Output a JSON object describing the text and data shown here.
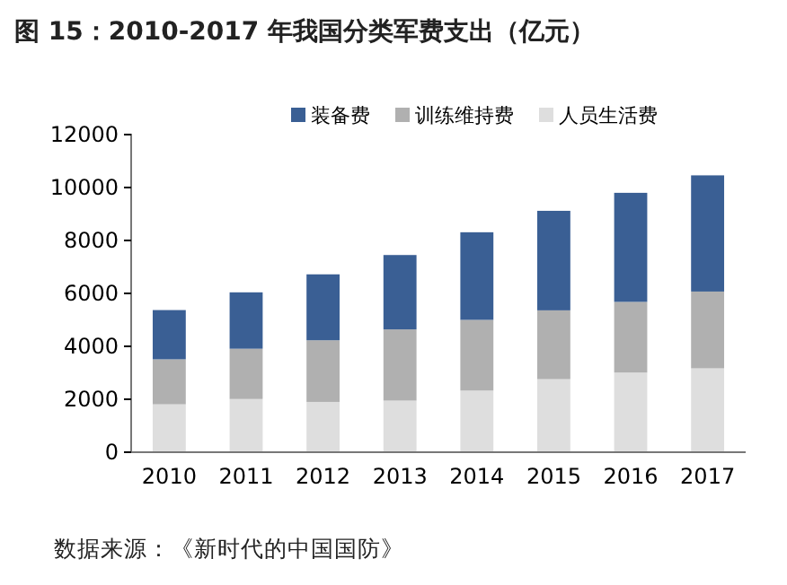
{
  "chart_data": {
    "type": "bar",
    "stacked": true,
    "title": "图 15：2010-2017 年我国分类军费支出（亿元）",
    "categories": [
      "2010",
      "2011",
      "2012",
      "2013",
      "2014",
      "2015",
      "2016",
      "2017"
    ],
    "series": [
      {
        "name": "人员生活费",
        "color": "#dedede",
        "values": [
          1810,
          2010,
          1900,
          1950,
          2330,
          2760,
          3010,
          3170
        ]
      },
      {
        "name": "训练维持费",
        "color": "#b0b0b0",
        "values": [
          1700,
          1900,
          2330,
          2690,
          2670,
          2600,
          2670,
          2900
        ]
      },
      {
        "name": "装备费",
        "color": "#3a5f94",
        "values": [
          1860,
          2130,
          2490,
          2810,
          3310,
          3760,
          4120,
          4390
        ]
      }
    ],
    "ylim": [
      0,
      12000
    ],
    "yticks": [
      0,
      2000,
      4000,
      6000,
      8000,
      10000,
      12000
    ],
    "legend": "top",
    "annotations": [
      "数据来源：《新时代的中国国防》"
    ]
  }
}
